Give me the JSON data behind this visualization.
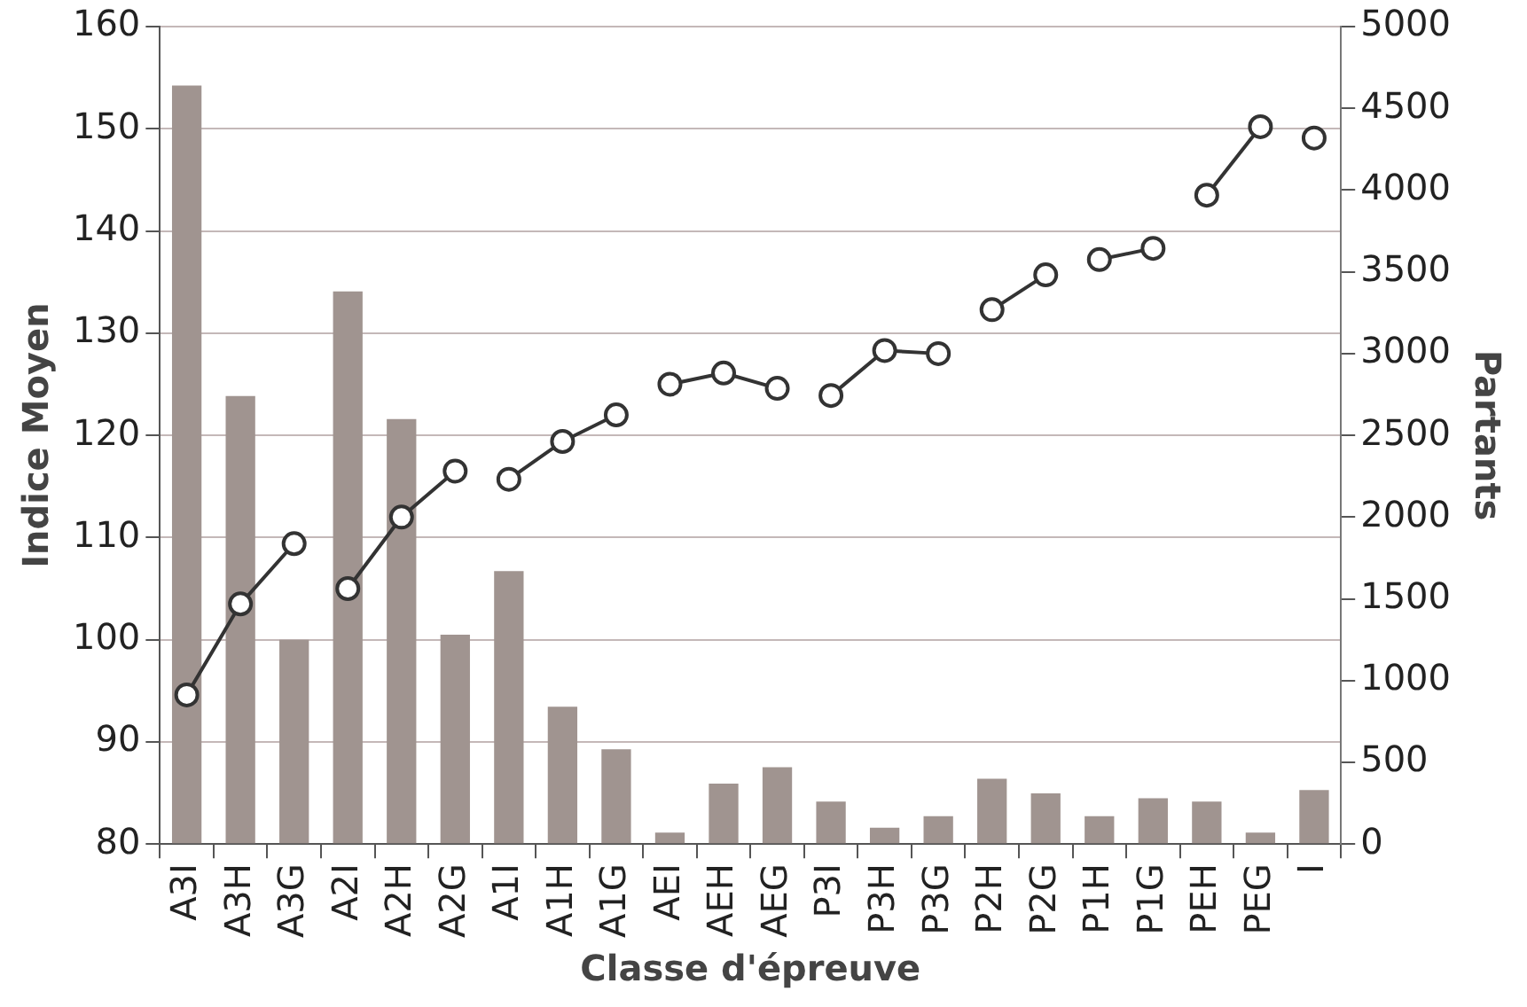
{
  "chart_data": {
    "type": "bar",
    "xlabel": "Classe d'épreuve",
    "ylabel": "Indice Moyen",
    "y2label": "Partants",
    "categories": [
      "A3I",
      "A3H",
      "A3G",
      "A2I",
      "A2H",
      "A2G",
      "A1I",
      "A1H",
      "A1G",
      "AEI",
      "AEH",
      "AEG",
      "P3I",
      "P3H",
      "P3G",
      "P2H",
      "P2G",
      "P1H",
      "P1G",
      "PEH",
      "PEG",
      "I"
    ],
    "ylim": [
      80,
      160
    ],
    "yticks": [
      80,
      90,
      100,
      110,
      120,
      130,
      140,
      150,
      160
    ],
    "y2lim": [
      0,
      5000
    ],
    "y2ticks": [
      0,
      500,
      1000,
      1500,
      2000,
      2500,
      3000,
      3500,
      4000,
      4500,
      5000
    ],
    "grid": "y",
    "legend": false,
    "marker": "circle",
    "line_style": "solid",
    "series": [
      {
        "axis": "y2",
        "color": "#a09490",
        "values": [
          4640,
          2740,
          1250,
          3380,
          2600,
          1280,
          1670,
          840,
          580,
          70,
          370,
          470,
          260,
          100,
          170,
          400,
          310,
          170,
          280,
          260,
          70,
          330
        ]
      },
      {
        "type": "line",
        "color": "#333333",
        "x": [
          "A3I",
          "A3H",
          "A3G"
        ],
        "values": [
          94.6,
          103.5,
          109.4
        ]
      },
      {
        "type": "line",
        "color": "#333333",
        "x": [
          "A2I",
          "A2H",
          "A2G"
        ],
        "values": [
          105.0,
          112.0,
          116.5
        ]
      },
      {
        "type": "line",
        "color": "#333333",
        "x": [
          "A1I",
          "A1H",
          "A1G"
        ],
        "values": [
          115.7,
          119.4,
          122.0
        ]
      },
      {
        "type": "line",
        "color": "#333333",
        "x": [
          "AEI",
          "AEH",
          "AEG"
        ],
        "values": [
          125.0,
          126.1,
          124.6
        ]
      },
      {
        "type": "line",
        "color": "#333333",
        "x": [
          "P3I",
          "P3H",
          "P3G"
        ],
        "values": [
          123.9,
          128.3,
          128.0
        ]
      },
      {
        "type": "line",
        "color": "#333333",
        "x": [
          "P2H",
          "P2G"
        ],
        "values": [
          132.3,
          135.7
        ]
      },
      {
        "type": "line",
        "color": "#333333",
        "x": [
          "P1H",
          "P1G"
        ],
        "values": [
          137.2,
          138.3
        ]
      },
      {
        "type": "line",
        "color": "#333333",
        "x": [
          "PEH",
          "PEG"
        ],
        "values": [
          143.5,
          150.2
        ]
      },
      {
        "type": "line",
        "color": "#333333",
        "x": [
          "I"
        ],
        "values": [
          149.1
        ]
      }
    ]
  }
}
